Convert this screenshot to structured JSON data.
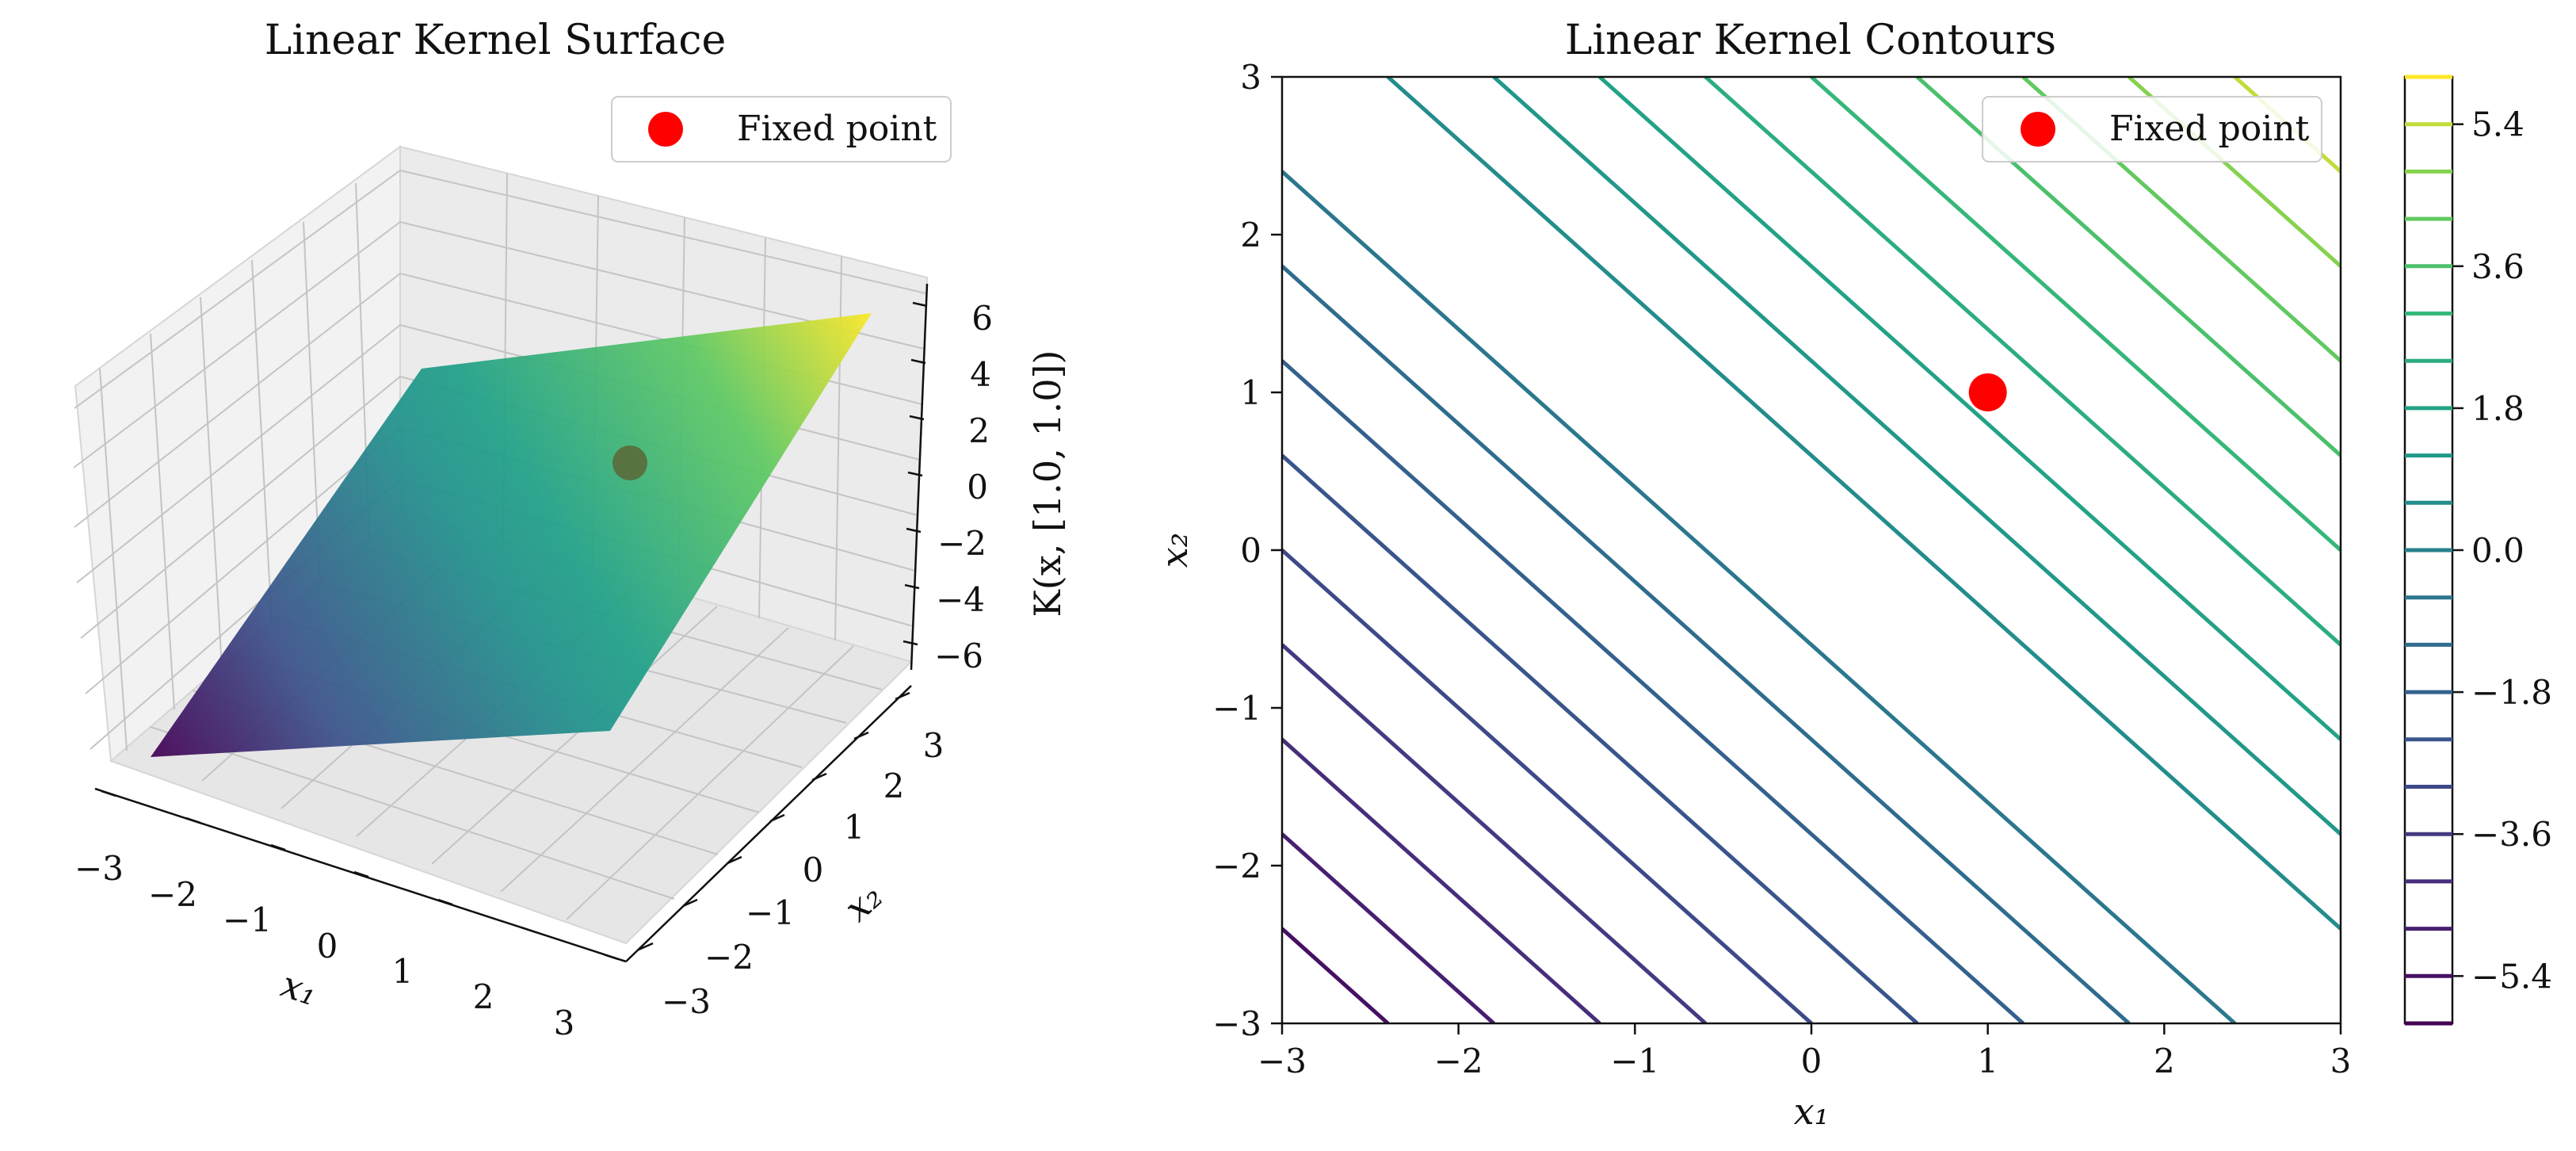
{
  "chart_data": [
    {
      "type": "surface3d",
      "title": "Linear Kernel Surface",
      "xlabel": "x₁",
      "ylabel": "x₂",
      "zlabel": "K(x, [1.0, 1.0])",
      "xlim": [
        -3,
        3
      ],
      "ylim": [
        -3,
        3
      ],
      "zlim": [
        -6,
        6
      ],
      "x_ticks": [
        "−3",
        "−2",
        "−1",
        "0",
        "1",
        "2",
        "3"
      ],
      "y_ticks": [
        "−3",
        "−2",
        "−1",
        "0",
        "1",
        "2",
        "3"
      ],
      "z_ticks": [
        "−6",
        "−4",
        "−2",
        "0",
        "2",
        "4",
        "6"
      ],
      "formula": "z = x1 + x2",
      "colormap": "viridis",
      "corners": [
        {
          "x": -3,
          "y": -3,
          "z": -6
        },
        {
          "x": 3,
          "y": -3,
          "z": 0
        },
        {
          "x": 3,
          "y": 3,
          "z": 6
        },
        {
          "x": -3,
          "y": 3,
          "z": 0
        }
      ],
      "fixed_point": {
        "x": 1,
        "y": 1,
        "z": 2,
        "color": "#5a6a3a"
      },
      "legend": {
        "label": "Fixed point",
        "marker_color": "#ff0000",
        "placement": "upper right"
      },
      "grid": true
    },
    {
      "type": "contour",
      "title": "Linear Kernel Contours",
      "xlabel": "x₁",
      "ylabel": "x₂",
      "xlim": [
        -3,
        3
      ],
      "ylim": [
        -3,
        3
      ],
      "x_ticks": [
        "−3",
        "−2",
        "−1",
        "0",
        "1",
        "2",
        "3"
      ],
      "y_ticks": [
        "−3",
        "−2",
        "−1",
        "0",
        "1",
        "2",
        "3"
      ],
      "formula": "z = x1 + x2",
      "levels": [
        -6.0,
        -5.4,
        -4.8,
        -4.2,
        -3.6,
        -3.0,
        -2.4,
        -1.8,
        -1.2,
        -0.6,
        0.0,
        0.6,
        1.2,
        1.8,
        2.4,
        3.0,
        3.6,
        4.2,
        4.8,
        5.4,
        6.0
      ],
      "colormap": "viridis",
      "fixed_point": {
        "x": 1,
        "y": 1,
        "color": "#ff0000"
      },
      "legend": {
        "label": "Fixed point",
        "marker_color": "#ff0000",
        "placement": "upper right"
      },
      "colorbar": {
        "range": [
          -6,
          6
        ],
        "tick_values": [
          5.4,
          3.6,
          1.8,
          0.0,
          -1.8,
          -3.6,
          -5.4
        ],
        "tick_labels": [
          "5.4",
          "3.6",
          "1.8",
          "0.0",
          "−1.8",
          "−3.6",
          "−5.4"
        ]
      }
    }
  ]
}
